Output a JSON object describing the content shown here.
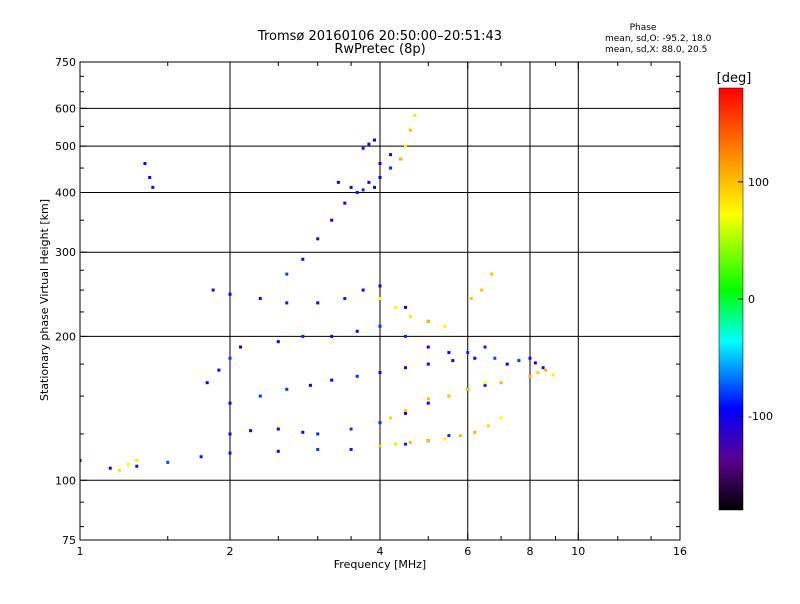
{
  "chart_data": {
    "type": "scatter",
    "title": "Tromsø 20160106 20:50:00–20:51:43",
    "subtitle": "RwPretec (8p)",
    "xlabel": "Frequency [MHz]",
    "ylabel": "Stationary phase Virtual Height [km]",
    "x_scale": "log",
    "y_scale": "log",
    "xlim": [
      1,
      16
    ],
    "ylim": [
      75,
      750
    ],
    "x_ticks": [
      "1",
      "2",
      "4",
      "6",
      "8",
      "10",
      "16"
    ],
    "x_tick_values": [
      1,
      2,
      4,
      6,
      8,
      10,
      16
    ],
    "y_ticks": [
      "75",
      "100",
      "200",
      "300",
      "400",
      "500",
      "600",
      "750"
    ],
    "y_tick_values": [
      75,
      100,
      200,
      300,
      400,
      500,
      600,
      750
    ],
    "x_minor_ticks": [
      1.5,
      2.5,
      3,
      3.5,
      5,
      7,
      9,
      12,
      14
    ],
    "y_minor_ticks": [
      80,
      90,
      125,
      150,
      175,
      225,
      250,
      275,
      350,
      450,
      550,
      650,
      700
    ],
    "grid": true,
    "grid_x": [
      2,
      4,
      6,
      8,
      10
    ],
    "grid_y": [
      100,
      200,
      300,
      400,
      500,
      600
    ],
    "phase_info": {
      "heading": "Phase",
      "line_o": "mean, sd,O: -95.2, 18.0",
      "line_x": "mean, sd,X:  88.0, 20.5"
    },
    "colorbar": {
      "label": "[deg]",
      "range": [
        -180,
        180
      ],
      "ticks": [
        "100",
        "0",
        "-100"
      ],
      "tick_values": [
        100,
        0,
        -100
      ],
      "colormap": "rainbow (black-purple-blue-cyan-green-yellow-red)"
    },
    "series": [
      {
        "mode": "O",
        "phase_mean": -95.2,
        "phase_sd": 18.0,
        "traces": [
          {
            "x": [
              1.0,
              1.15,
              1.3,
              1.5,
              1.75,
              2.0,
              2.5,
              3.0,
              3.5,
              4.0,
              4.5,
              5.0,
              5.5
            ],
            "y": [
              110,
              106,
              107,
              109,
              112,
              114,
              115,
              116,
              116,
              118,
              119,
              121,
              124
            ]
          },
          {
            "x": [
              2.0,
              2.2,
              2.5,
              2.8,
              3.0,
              3.5,
              4.0,
              4.5,
              5.0,
              5.5,
              6.0,
              6.5
            ],
            "y": [
              125,
              127,
              128,
              126,
              125,
              128,
              132,
              138,
              145,
              150,
              155,
              158
            ]
          },
          {
            "x": [
              2.0,
              2.3,
              2.6,
              2.9,
              3.2,
              3.6,
              4.0,
              4.5,
              5.0,
              5.6,
              6.2,
              6.8
            ],
            "y": [
              145,
              150,
              155,
              158,
              162,
              165,
              168,
              172,
              175,
              178,
              180,
              180
            ]
          },
          {
            "x": [
              2.5,
              2.8,
              3.2,
              3.6,
              4.0,
              4.5,
              5.0,
              5.5,
              6.0,
              6.5
            ],
            "y": [
              195,
              200,
              200,
              205,
              210,
              200,
              190,
              185,
              185,
              190
            ]
          },
          {
            "x": [
              1.85,
              2.0,
              2.3,
              2.6,
              3.0,
              3.4,
              3.7,
              4.0,
              4.5,
              5.0
            ],
            "y": [
              250,
              245,
              240,
              235,
              235,
              240,
              250,
              255,
              230,
              215
            ]
          },
          {
            "x": [
              2.6,
              2.8,
              3.0,
              3.2,
              3.4,
              3.6,
              3.8,
              4.0,
              4.2
            ],
            "y": [
              270,
              290,
              320,
              350,
              380,
              400,
              420,
              460,
              480
            ]
          },
          {
            "x": [
              3.3,
              3.5,
              3.7,
              3.9,
              4.0,
              4.2,
              4.4
            ],
            "y": [
              420,
              410,
              405,
              410,
              430,
              450,
              470
            ]
          },
          {
            "x": [
              3.7,
              3.8,
              3.9
            ],
            "y": [
              495,
              505,
              515
            ]
          },
          {
            "x": [
              1.35,
              1.38,
              1.4
            ],
            "y": [
              460,
              430,
              410
            ]
          },
          {
            "x": [
              1.8,
              1.9,
              2.0,
              2.1
            ],
            "y": [
              160,
              170,
              180,
              190
            ]
          },
          {
            "x": [
              7.2,
              7.6,
              8.0,
              8.2,
              8.5
            ],
            "y": [
              175,
              178,
              180,
              176,
              172
            ]
          }
        ]
      },
      {
        "mode": "X",
        "phase_mean": 88.0,
        "phase_sd": 20.5,
        "traces": [
          {
            "x": [
              4.0,
              4.3,
              4.6,
              5.0,
              5.4,
              5.8,
              6.2,
              6.6,
              7.0
            ],
            "y": [
              118,
              119,
              120,
              121,
              122,
              124,
              126,
              130,
              135
            ]
          },
          {
            "x": [
              4.2,
              4.5,
              5.0,
              5.5,
              6.0,
              6.5,
              7.0
            ],
            "y": [
              135,
              140,
              148,
              150,
              155,
              160,
              160
            ]
          },
          {
            "x": [
              4.0,
              4.3,
              4.6,
              5.0,
              5.4
            ],
            "y": [
              240,
              230,
              220,
              215,
              210
            ]
          },
          {
            "x": [
              4.4,
              4.5,
              4.6,
              4.7
            ],
            "y": [
              470,
              500,
              540,
              580
            ]
          },
          {
            "x": [
              1.2,
              1.25,
              1.3
            ],
            "y": [
              105,
              108,
              110
            ]
          },
          {
            "x": [
              6.1,
              6.4,
              6.7
            ],
            "y": [
              240,
              250,
              270
            ]
          },
          {
            "x": [
              8.0,
              8.3,
              8.6,
              8.9
            ],
            "y": [
              165,
              168,
              170,
              166
            ]
          }
        ]
      }
    ]
  }
}
